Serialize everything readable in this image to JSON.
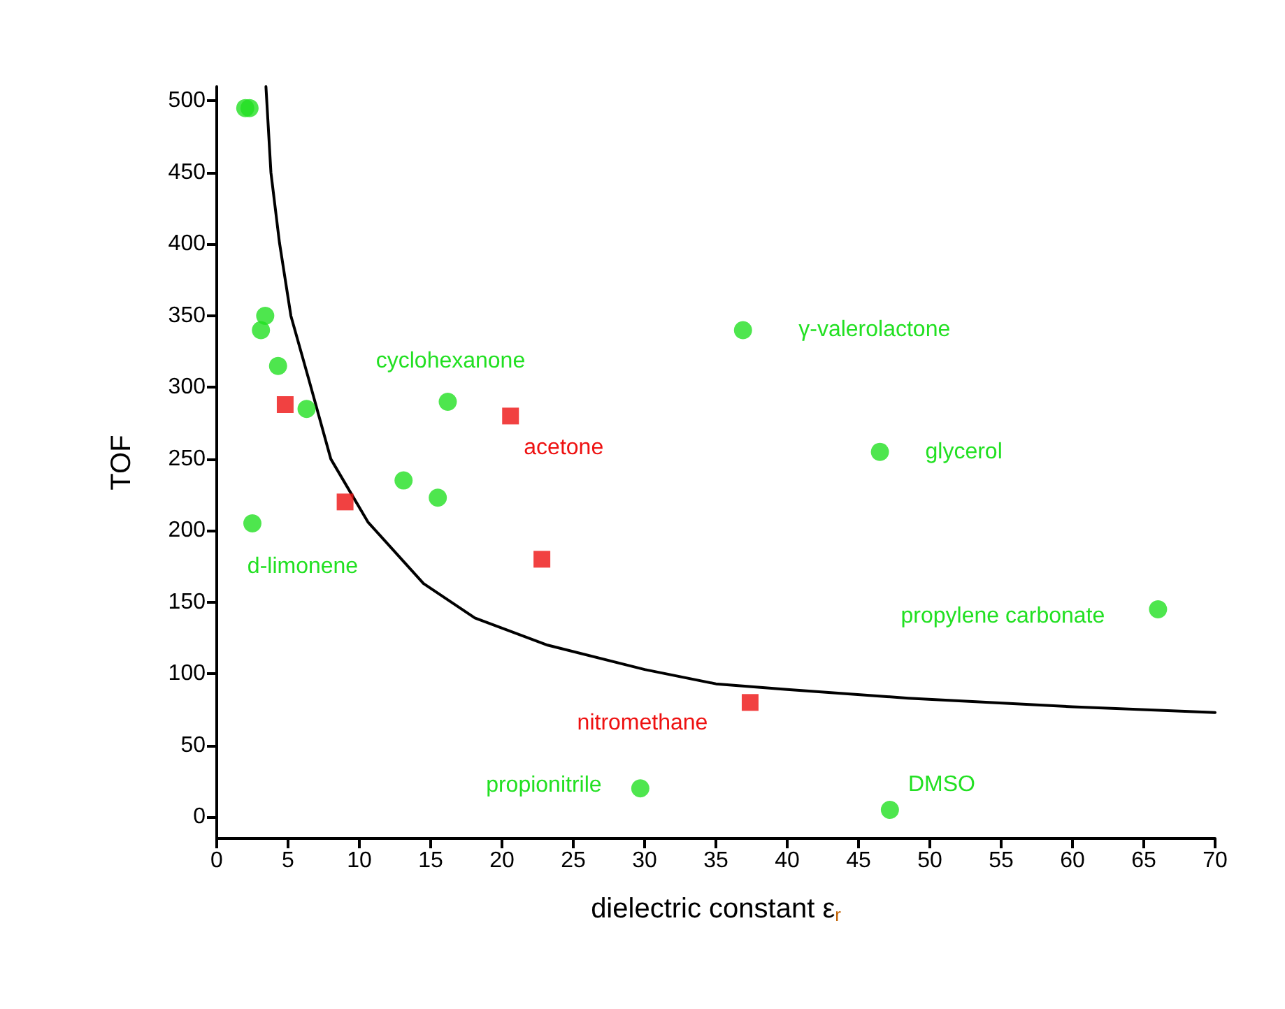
{
  "chart_data": {
    "type": "scatter",
    "xlabel": "dielectric constant ε$_{r}$",
    "ylabel": "TOF",
    "xlim": [
      0,
      70
    ],
    "xticks": [
      0,
      5,
      10,
      15,
      20,
      25,
      30,
      35,
      40,
      45,
      50,
      55,
      60,
      65,
      70
    ],
    "ylim": [
      -15,
      510
    ],
    "yticks": [
      0,
      50,
      100,
      150,
      200,
      250,
      300,
      350,
      400,
      450,
      500
    ],
    "grid": false,
    "series": [
      {
        "marker": "circle",
        "color": "#22e022",
        "x": [
          2.0,
          2.3,
          3.4,
          3.1,
          4.3,
          6.3,
          16.2,
          13.1,
          15.5,
          2.5,
          36.9,
          46.5,
          66.0,
          29.7,
          47.2
        ],
        "values": [
          495,
          495,
          350,
          340,
          315,
          285,
          290,
          235,
          223,
          205,
          340,
          255,
          145,
          20,
          5
        ]
      },
      {
        "marker": "square",
        "color": "#ee1111",
        "x": [
          4.8,
          20.6,
          9.0,
          22.8,
          37.4
        ],
        "values": [
          288,
          280,
          220,
          180,
          80
        ]
      },
      {
        "type": "line",
        "marker": "none",
        "line_style": "solid",
        "color": "#000000",
        "x": [
          3.45,
          3.8,
          4.4,
          5.2,
          6.5,
          8.0,
          10.6,
          14.5,
          18.1,
          23.2,
          30,
          35,
          40,
          48.5,
          60,
          70
        ],
        "values": [
          510,
          450,
          401,
          350,
          304,
          250,
          206,
          163,
          139,
          120,
          103,
          93,
          89,
          83,
          77,
          73
        ]
      }
    ],
    "annotations": [
      {
        "text": "cyclohexanone",
        "x": 16.2,
        "y": 290
      },
      {
        "text": "acetone",
        "x": 20.6,
        "y": 280
      },
      {
        "text": "d-limonene",
        "x": 2.5,
        "y": 205
      },
      {
        "text": "γ-valerolactone",
        "x": 36.9,
        "y": 340
      },
      {
        "text": "glycerol",
        "x": 46.5,
        "y": 255
      },
      {
        "text": "propylene carbonate",
        "x": 66.0,
        "y": 145
      },
      {
        "text": "nitromethane",
        "x": 37.4,
        "y": 80
      },
      {
        "text": "propionitrile",
        "x": 29.7,
        "y": 20
      },
      {
        "text": "DMSO",
        "x": 47.2,
        "y": 5
      }
    ]
  }
}
